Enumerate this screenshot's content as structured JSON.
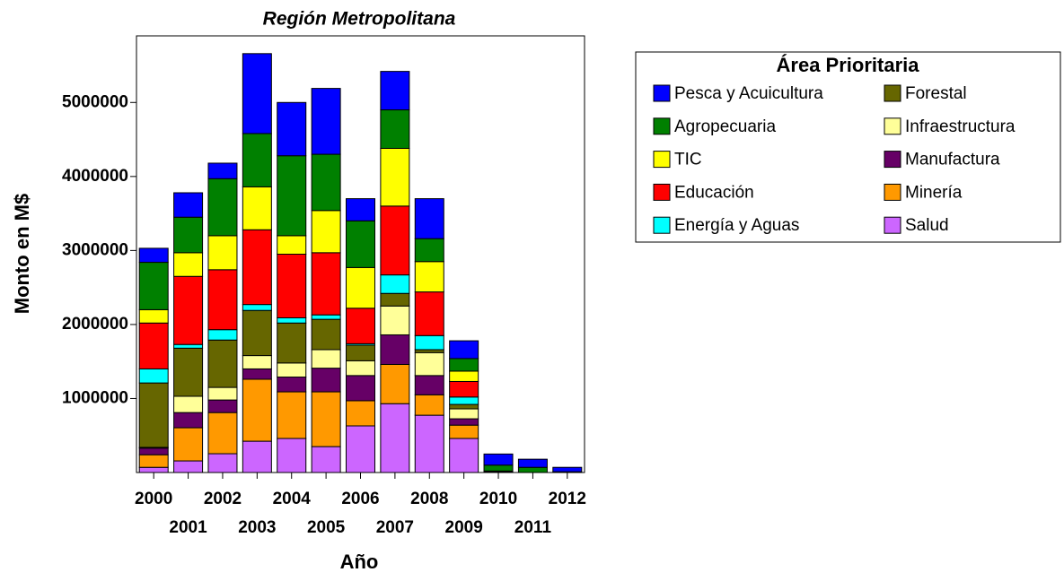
{
  "chart_data": {
    "type": "stacked_bar",
    "title": "Región Metropolitana",
    "x_label": "Año",
    "y_label": "Monto en M$",
    "legend_title": "Área Prioritaria",
    "categories": [
      "2000",
      "2001",
      "2002",
      "2003",
      "2004",
      "2005",
      "2006",
      "2007",
      "2008",
      "2009",
      "2010",
      "2011",
      "2012"
    ],
    "ylim": [
      0,
      5900000
    ],
    "yticks": [
      1000000,
      2000000,
      3000000,
      4000000,
      5000000
    ],
    "series": [
      {
        "name": "Salud",
        "color": "#cc66ff",
        "values": [
          70000,
          157000,
          254000,
          423000,
          460000,
          350000,
          630000,
          930000,
          774000,
          460000,
          0,
          0,
          0
        ]
      },
      {
        "name": "Minería",
        "color": "#ff9900",
        "values": [
          170000,
          448000,
          556000,
          837000,
          630000,
          740000,
          340000,
          530000,
          276000,
          180000,
          10000,
          0,
          0
        ]
      },
      {
        "name": "Manufactura",
        "color": "#660066",
        "values": [
          90000,
          205000,
          170000,
          140000,
          200000,
          320000,
          340000,
          400000,
          260000,
          86000,
          0,
          0,
          0
        ]
      },
      {
        "name": "Infraestructura",
        "color": "#ffff99",
        "values": [
          10000,
          220000,
          170000,
          180000,
          190000,
          250000,
          200000,
          390000,
          310000,
          134000,
          0,
          0,
          0
        ]
      },
      {
        "name": "Forestal",
        "color": "#666600",
        "values": [
          870000,
          650000,
          640000,
          610000,
          540000,
          410000,
          210000,
          170000,
          40000,
          60000,
          10000,
          0,
          0
        ]
      },
      {
        "name": "Energía y Aguas",
        "color": "#00ffff",
        "values": [
          190000,
          50000,
          140000,
          80000,
          70000,
          60000,
          20000,
          250000,
          190000,
          100000,
          0,
          0,
          0
        ]
      },
      {
        "name": "Educación",
        "color": "#ff0000",
        "values": [
          620000,
          920000,
          810000,
          1010000,
          860000,
          840000,
          480000,
          930000,
          590000,
          210000,
          0,
          0,
          0
        ]
      },
      {
        "name": "TIC",
        "color": "#ffff00",
        "values": [
          180000,
          320000,
          460000,
          580000,
          250000,
          570000,
          550000,
          780000,
          410000,
          140000,
          0,
          0,
          0
        ]
      },
      {
        "name": "Agropecuaria",
        "color": "#008000",
        "values": [
          640000,
          480000,
          770000,
          720000,
          1080000,
          760000,
          630000,
          520000,
          310000,
          170000,
          80000,
          70000,
          10000
        ]
      },
      {
        "name": "Pesca y Acuicultura",
        "color": "#0000ff",
        "values": [
          190000,
          330000,
          210000,
          1080000,
          720000,
          890000,
          300000,
          520000,
          540000,
          240000,
          150000,
          110000,
          60000
        ]
      }
    ]
  }
}
